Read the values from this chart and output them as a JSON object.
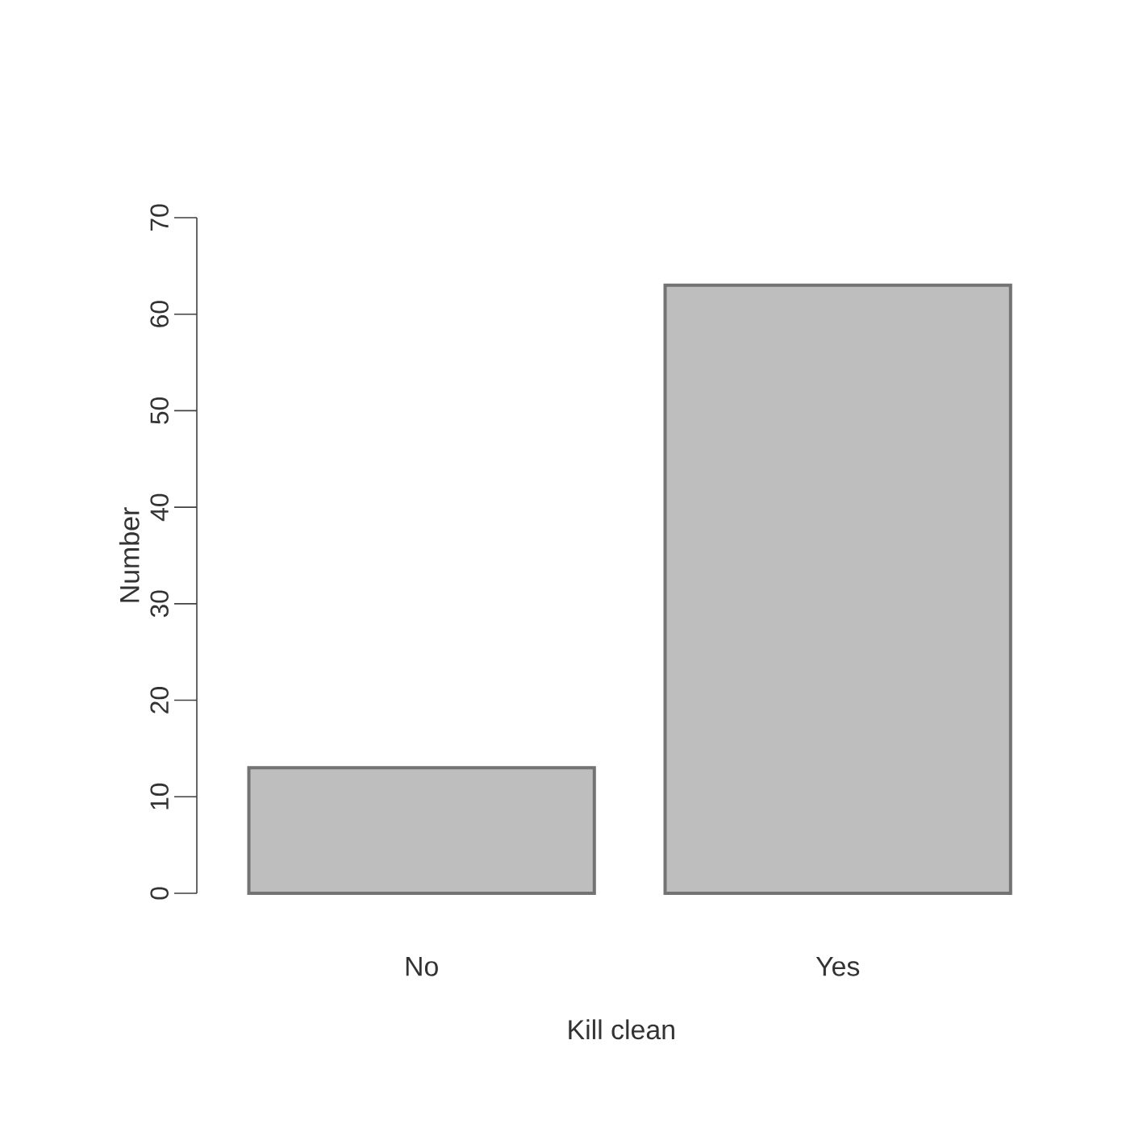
{
  "chart_data": {
    "type": "bar",
    "xlabel": "Kill clean",
    "ylabel": "Number",
    "categories": [
      "No",
      "Yes"
    ],
    "values": [
      13,
      63
    ],
    "color": "#bebebe",
    "ylim": [
      0,
      70
    ],
    "yticks": [
      0,
      10,
      20,
      30,
      40,
      50,
      60,
      70
    ],
    "grid": false
  }
}
